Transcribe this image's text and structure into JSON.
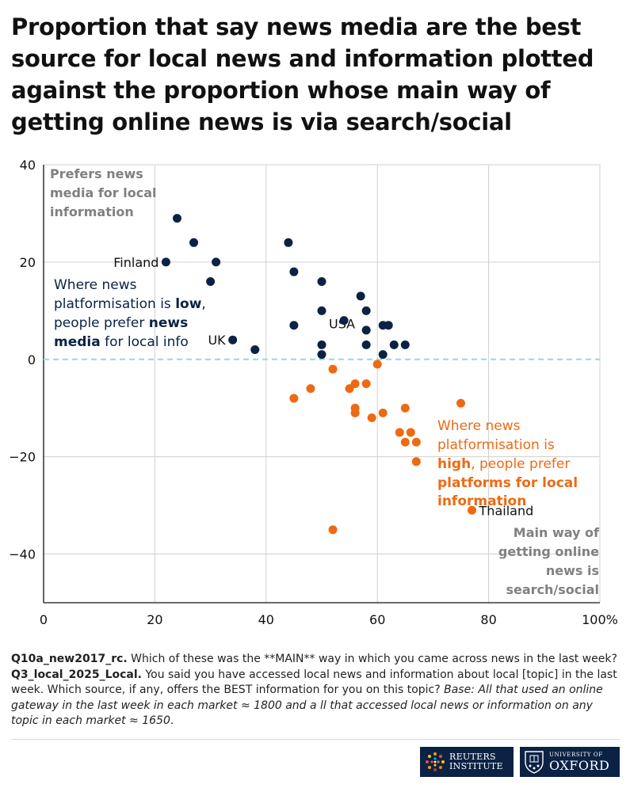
{
  "title": "Proportion that say news media are the best source for local news and information plotted against the proportion whose main way of getting online news is via search/social",
  "colors": {
    "media": "#0b2244",
    "platforms": "#ee6a12",
    "zero_line": "#a9d6e8",
    "grid": "#d0d0d0",
    "corner_label": "#808080"
  },
  "chart_data": {
    "type": "scatter",
    "xlim": [
      0,
      100
    ],
    "ylim": [
      -50,
      40
    ],
    "x_ticks": [
      0,
      20,
      40,
      60,
      80,
      100
    ],
    "x_tick_labels": [
      "0",
      "20",
      "40",
      "60",
      "80",
      "100%"
    ],
    "y_ticks": [
      40,
      20,
      0,
      -20,
      -40
    ],
    "y_tick_labels": [
      "40",
      "20",
      "0",
      "−20",
      "−40"
    ],
    "zero_line": 0,
    "series": [
      {
        "name": "Prefers news media",
        "color": "#0b2244",
        "points": [
          [
            22,
            20
          ],
          [
            24,
            29
          ],
          [
            27,
            24
          ],
          [
            30,
            16
          ],
          [
            31,
            20
          ],
          [
            34,
            4
          ],
          [
            38,
            2
          ],
          [
            44,
            24
          ],
          [
            45,
            18
          ],
          [
            45,
            7
          ],
          [
            50,
            16
          ],
          [
            50,
            10
          ],
          [
            50,
            3
          ],
          [
            50,
            1
          ],
          [
            54,
            8
          ],
          [
            57,
            13
          ],
          [
            58,
            10
          ],
          [
            58,
            6
          ],
          [
            58,
            3
          ],
          [
            61,
            7
          ],
          [
            61,
            1
          ],
          [
            62,
            7
          ],
          [
            63,
            3
          ],
          [
            65,
            3
          ]
        ]
      },
      {
        "name": "Prefers platforms",
        "color": "#ee6a12",
        "points": [
          [
            45,
            -8
          ],
          [
            48,
            -6
          ],
          [
            52,
            -2
          ],
          [
            52,
            -35
          ],
          [
            55,
            -6
          ],
          [
            56,
            -5
          ],
          [
            56,
            -10
          ],
          [
            56,
            -11
          ],
          [
            58,
            -5
          ],
          [
            59,
            -12
          ],
          [
            60,
            -1
          ],
          [
            61,
            -11
          ],
          [
            64,
            -15
          ],
          [
            65,
            -17
          ],
          [
            65,
            -10
          ],
          [
            66,
            -15
          ],
          [
            67,
            -17
          ],
          [
            67,
            -21
          ],
          [
            75,
            -9
          ],
          [
            77,
            -31
          ]
        ]
      }
    ],
    "country_labels": [
      {
        "name": "Finland",
        "x": 22,
        "y": 20,
        "side": "left"
      },
      {
        "name": "UK",
        "x": 34,
        "y": 4,
        "side": "left"
      },
      {
        "name": "USA",
        "x": 50,
        "y": 3,
        "side": "right"
      },
      {
        "name": "Thailand",
        "x": 77,
        "y": -31,
        "side": "right"
      }
    ],
    "corner_label_top_left": [
      "Prefers news",
      "media for local",
      "information"
    ],
    "corner_label_bottom_right": [
      "Main way of",
      "getting online",
      "news is",
      "search/social"
    ],
    "annotation_low": {
      "line1": "Where news",
      "line2_a": "platformisation is ",
      "line2_b": "low",
      "line2_c": ",",
      "line3_a": "people prefer ",
      "line3_b": "news",
      "line4_a": "media",
      "line4_b": " for local info"
    },
    "annotation_high": {
      "line1": "Where news",
      "line2": "platformisation is",
      "line3_a": "high",
      "line3_b": ", people prefer",
      "line4": "platforms for local",
      "line5": "information"
    }
  },
  "notes": {
    "q1_code": "Q10a_new2017_rc.",
    "q1_text": " Which of these was the **MAIN** way in which you came across news in the last week? ",
    "q2_code": "Q3_local_2025_Local.",
    "q2_text": " You said you have accessed local news and information about local [topic] in the last week. Which source, if any, offers the BEST information for you on this topic? ",
    "base": "Base: All that used an online gateway in the last week in each market ≈ 1800 and a ll that accessed local news or information on any topic in each market ≈ 1650",
    "end": "."
  },
  "logos": {
    "reuters_line1": "REUTERS",
    "reuters_line2": "INSTITUTE",
    "oxford_line1": "UNIVERSITY OF",
    "oxford_line2": "OXFORD"
  }
}
